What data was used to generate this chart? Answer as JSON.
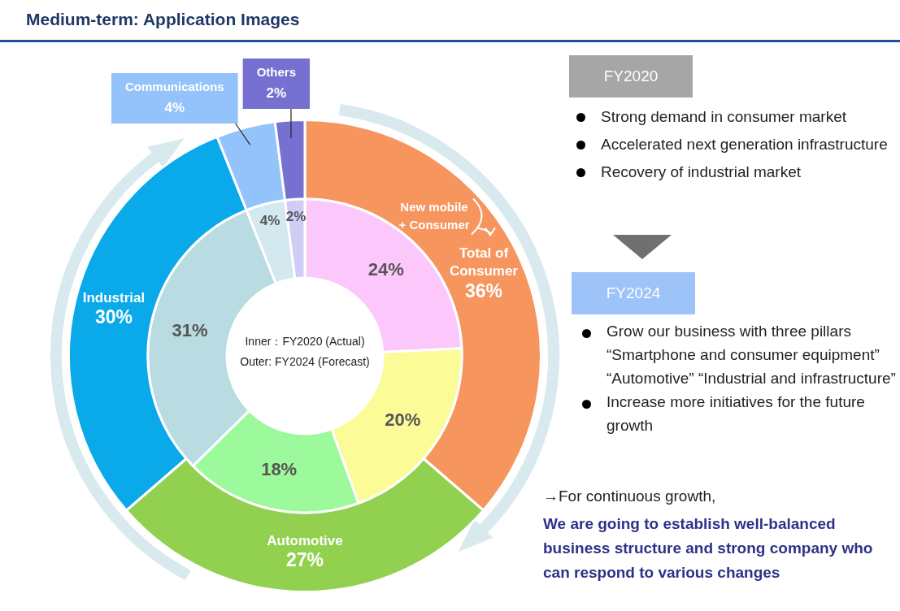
{
  "chart_data": {
    "type": "donut",
    "title": "Medium-term: Application Images",
    "categories": [
      "Total of Consumer",
      null,
      "Automotive",
      "Industrial",
      "Communications",
      "Others"
    ],
    "series": [
      {
        "values": [
          36,
          null,
          27,
          30,
          4,
          2
        ],
        "colors": [
          "#f7955f",
          "#f7955f",
          "#92d050",
          "#0aa9ea",
          "#93c3fa",
          "#7670d0"
        ],
        "value_labels": [
          "36%",
          null,
          "27%",
          "30%",
          "4%",
          "2%"
        ]
      },
      {
        "values": [
          24,
          20,
          18,
          31,
          4,
          2
        ],
        "colors": [
          "#fcc8fc",
          "#fbfb98",
          "#9cfa9c",
          "#b9dbe2",
          "#d3e9ef",
          "#cfcdf6"
        ],
        "value_labels": [
          "24%",
          "20%",
          "18%",
          "31%",
          "4%",
          "2%"
        ]
      }
    ],
    "annotations": [
      "Inner：FY2020 (Actual)",
      "Outer: FY2024 (Forecast)",
      "FY2020",
      "Strong demand in consumer market",
      "Accelerated next generation infrastructure",
      "Recovery of industrial market",
      "FY2024",
      "Grow our business with three pillars “Smartphone and consumer equipment” “Automotive” “Industrial and infrastructure”",
      "Increase more initiatives for the future growth",
      "→For continuous growth,",
      "We are going to establish well-balanced business structure and strong company who can respond to various changes",
      "New mobile + Consumer"
    ]
  }
}
